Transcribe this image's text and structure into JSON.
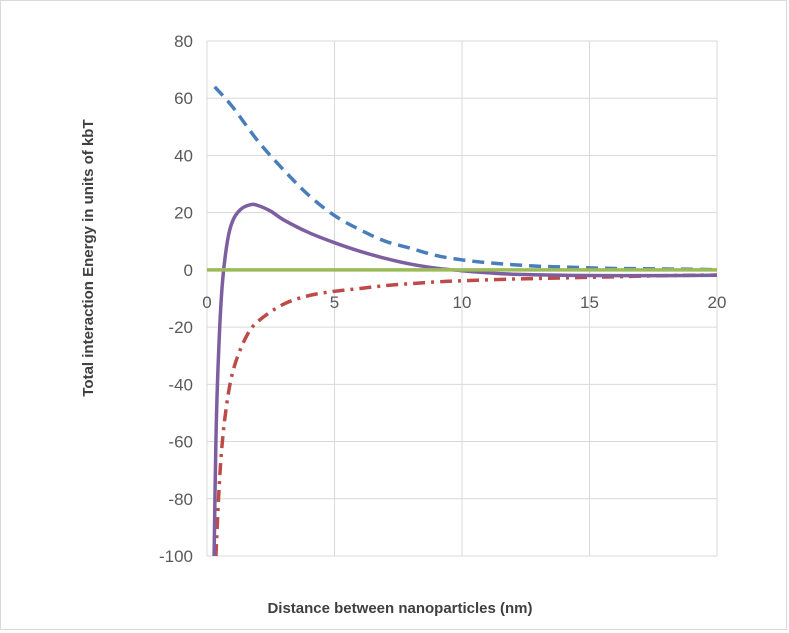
{
  "chart_data": {
    "type": "line",
    "title": "",
    "xlabel": "Distance between nanoparticles (nm)",
    "ylabel": "Total interaction Energy in units of kbT",
    "xlim": [
      0,
      20
    ],
    "ylim": [
      -100,
      80
    ],
    "xticks": [
      "0",
      "5",
      "10",
      "15",
      "20"
    ],
    "xtick_values": [
      0,
      5,
      10,
      15,
      20
    ],
    "yticks": [
      "80",
      "60",
      "40",
      "20",
      "0",
      "-20",
      "-40",
      "-60",
      "-80",
      "-100"
    ],
    "ytick_values": [
      80,
      60,
      40,
      20,
      0,
      -20,
      -40,
      -60,
      -80,
      -100
    ],
    "grid": true,
    "legend": "none",
    "series": [
      {
        "color": "#4a7ebb",
        "style": "dashed",
        "x": [
          0.3,
          1,
          2,
          3,
          4,
          5,
          6,
          7,
          8,
          9,
          10,
          11,
          12,
          13,
          14,
          15,
          16,
          17,
          18,
          19,
          20
        ],
        "y": [
          64,
          57,
          45,
          35,
          26,
          19,
          14,
          10,
          7.5,
          5,
          3.5,
          2.5,
          1.8,
          1.3,
          1,
          0.7,
          0.5,
          0.4,
          0.3,
          0.2,
          0.1
        ]
      },
      {
        "color": "#be4b48",
        "style": "dash-dot",
        "x": [
          0.35,
          0.5,
          0.7,
          1,
          1.5,
          2,
          3,
          4,
          5,
          6,
          7,
          8,
          9,
          10,
          12,
          14,
          16,
          18,
          20
        ],
        "y": [
          -100,
          -72,
          -52,
          -36,
          -24,
          -18,
          -12,
          -9,
          -7.5,
          -6.5,
          -5.5,
          -4.8,
          -4.2,
          -3.8,
          -3.2,
          -2.8,
          -2.4,
          -2,
          -1.8
        ]
      },
      {
        "color": "#7d5fa0",
        "style": "solid",
        "x": [
          0.28,
          0.35,
          0.45,
          0.6,
          0.8,
          1,
          1.3,
          1.7,
          2,
          2.5,
          3,
          4,
          5,
          6,
          7,
          8,
          9,
          10,
          11,
          12,
          14,
          16,
          18,
          20
        ],
        "y": [
          -100,
          -60,
          -30,
          -5,
          10,
          17,
          21,
          22.8,
          22.5,
          20.5,
          17.5,
          13,
          9.5,
          6.5,
          4,
          2,
          0.6,
          -0.3,
          -1,
          -1.5,
          -1.9,
          -2,
          -2,
          -1.9
        ]
      },
      {
        "color": "#9bbb59",
        "style": "solid",
        "x": [
          0,
          20
        ],
        "y": [
          0,
          0
        ]
      }
    ]
  }
}
